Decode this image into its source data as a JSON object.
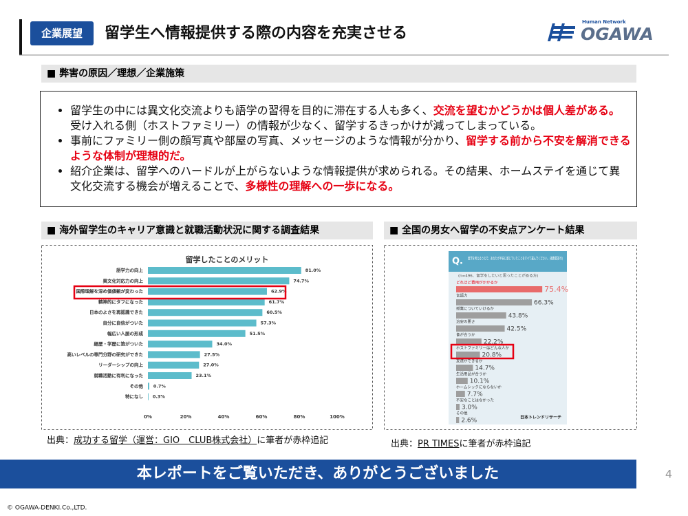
{
  "header": {
    "tag": "企業展望",
    "title": "留学生へ情報提供する際の内容を充実させる"
  },
  "logo": {
    "tagline": "Human Network",
    "name": "OGAWA"
  },
  "sections": [
    "■ 弊害の原因／理想／企業施策",
    "■ 海外留学生のキャリア意識と就職活動状況に関する調査結果",
    "■ 全国の男女へ留学の不安点アンケート結果"
  ],
  "bullets": [
    [
      "留学生の中には異文化交流よりも語学の習得を目的に滞在する人も多く、",
      "交流を望むかどうかは個人差がある。",
      "受け入れる側（ホストファミリー）の情報が少なく、留学するきっかけが減ってしまっている。"
    ],
    [
      "事前にファミリー側の顔写真や部屋の写真、メッセージのような情報が分かり、",
      "留学する前から不安を解消できるような体制が理想的だ。"
    ],
    [
      "紹介企業は、留学へのハードルが上がらないような情報提供が求められる。その結果、ホームステイを通じて異文化交流する機会が増えることで、",
      "多様性の理解への一歩になる。"
    ]
  ],
  "chart_data": [
    {
      "type": "bar",
      "orientation": "horizontal",
      "title": "留学したことのメリット",
      "color": "#5cbccb",
      "categories": [
        "語学力の向上",
        "異文化対応力の向上",
        "国際理解を深め価値観が変わった",
        "精神的にタフになった",
        "日本のよさを再認識できた",
        "自分に自信がついた",
        "幅広い人脈の形成",
        "経歴・学歴に箔がついた",
        "高いレベルの専門分野の研究ができた",
        "リーダーシップの向上",
        "就職活動に有利になった",
        "その他",
        "特になし"
      ],
      "values": [
        81.0,
        74.7,
        62.9,
        61.7,
        60.5,
        57.3,
        51.5,
        34.0,
        27.5,
        27.0,
        23.1,
        0.7,
        0.3
      ],
      "value_labels": [
        "81.0%",
        "74.7%",
        "62.9%",
        "61.7%",
        "60.5%",
        "57.3%",
        "51.5%",
        "34.0%",
        "27.5%",
        "27.0%",
        "23.1%",
        "0.7%",
        "0.3%"
      ],
      "xlim": [
        0,
        100
      ],
      "xticks": [
        {
          "value": 0,
          "label": "0%"
        },
        {
          "value": 20,
          "label": "20%"
        },
        {
          "value": 40,
          "label": "40%"
        },
        {
          "value": 60,
          "label": "60%"
        },
        {
          "value": 80,
          "label": "80%"
        },
        {
          "value": 100,
          "label": "100%"
        }
      ]
    },
    {
      "type": "bar",
      "orientation": "horizontal",
      "badge": "Q.",
      "question": "留学を考えるうえで、あなたが不安に感じていたことをすべて選んでください。(複数回答可)",
      "note": "(n=496、留学をしたいと思ったことがある方)",
      "source": "日本トレンドリサーチ",
      "categories": [
        "どれほど費用がかかるか",
        "言語力",
        "授業についていけるか",
        "治安の悪さ",
        "食が合うか",
        "ホストファミリーはどんな人か",
        "友達ができるか",
        "生活用品が合うか",
        "ホームシックにならないか",
        "不安なことはなかった",
        "その他"
      ],
      "values": [
        75.4,
        66.3,
        43.8,
        42.5,
        22.2,
        20.8,
        14.7,
        10.1,
        7.7,
        3.0,
        2.6
      ],
      "value_labels": [
        "75.4%",
        "66.3%",
        "43.8%",
        "42.5%",
        "22.2%",
        "20.8%",
        "14.7%",
        "10.1%",
        "7.7%",
        "3.0%",
        "2.6%"
      ],
      "colors": [
        "#e86b6b",
        "#9e9e9e",
        "#9e9e9e",
        "#9e9e9e",
        "#9e9e9e",
        "#9e9e9e",
        "#9e9e9e",
        "#9e9e9e",
        "#9e9e9e",
        "#9e9e9e",
        "#9e9e9e"
      ],
      "xlim": [
        0,
        100
      ]
    }
  ],
  "sources": [
    [
      "出典：",
      "成功する留学（運営：GIO　CLUB株式会社）",
      "に筆者が赤枠追記"
    ],
    [
      "出典：",
      "PR TIMES",
      "に筆者が赤枠追記"
    ]
  ],
  "banner": "本レポートをご覧いただき、ありがとうございました",
  "page_number": "4",
  "copyright": "© OGAWA-DENKI.Co.,LTD."
}
